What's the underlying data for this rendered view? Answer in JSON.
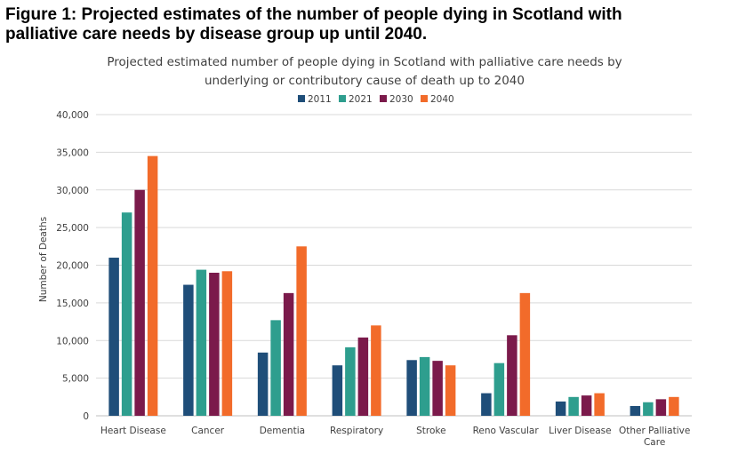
{
  "figure_title_line1": "Figure 1: Projected estimates of the number of people dying in Scotland with",
  "figure_title_line2": "palliative care needs by disease group up until 2040.",
  "chart_data": {
    "type": "bar",
    "title_line1": "Projected estimated number of people dying in Scotland with palliative care needs by",
    "title_line2": "underlying or contributory cause of death up to 2040",
    "xlabel": "",
    "ylabel": "Number of Deaths",
    "ylim": [
      0,
      40000
    ],
    "yticks": [
      "0",
      "5,000",
      "10,000",
      "15,000",
      "20,000",
      "25,000",
      "30,000",
      "35,000",
      "40,000"
    ],
    "ytick_values": [
      0,
      5000,
      10000,
      15000,
      20000,
      25000,
      30000,
      35000,
      40000
    ],
    "grid": true,
    "legend_position": "top",
    "categories": [
      [
        "Heart Disease"
      ],
      [
        "Cancer"
      ],
      [
        "Dementia"
      ],
      [
        "Respiratory"
      ],
      [
        "Stroke"
      ],
      [
        "Reno Vascular"
      ],
      [
        "Liver Disease"
      ],
      [
        "Other Palliative",
        "Care"
      ]
    ],
    "series": [
      {
        "name": "2011",
        "color": "#1f4e79",
        "values": [
          21000,
          17400,
          8400,
          6700,
          7400,
          3000,
          1900,
          1300
        ]
      },
      {
        "name": "2021",
        "color": "#2e9e8e",
        "values": [
          27000,
          19400,
          12700,
          9100,
          7800,
          7000,
          2500,
          1800
        ]
      },
      {
        "name": "2030",
        "color": "#7b1a4b",
        "values": [
          30000,
          19000,
          16300,
          10400,
          7300,
          10700,
          2700,
          2200
        ]
      },
      {
        "name": "2040",
        "color": "#f26b2a",
        "values": [
          34500,
          19200,
          22500,
          12000,
          6700,
          16300,
          3000,
          2500
        ]
      }
    ]
  }
}
